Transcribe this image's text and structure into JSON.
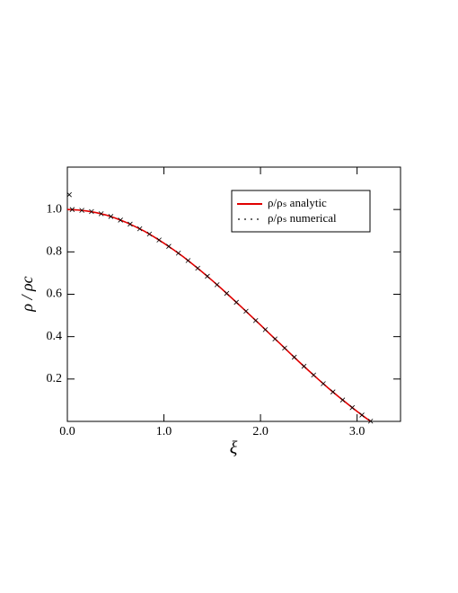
{
  "chart_data": {
    "type": "line",
    "xlabel": "ξ",
    "ylabel": "ρ / ρc",
    "xlim": [
      0,
      3.45
    ],
    "ylim": [
      0,
      1.2
    ],
    "xticks": [
      {
        "value": 0,
        "label": "0.0"
      },
      {
        "value": 1,
        "label": "1.0"
      },
      {
        "value": 2,
        "label": "2.0"
      },
      {
        "value": 3,
        "label": "3.0"
      }
    ],
    "yticks": [
      0.2,
      0.4,
      0.6,
      0.8,
      {
        "value": 1,
        "label": "1.0"
      }
    ],
    "legend": "upper right",
    "series": [
      {
        "name": "ρ/ρₛ analytic",
        "color": "#e00000",
        "style": "line",
        "x": [
          0,
          0.1,
          0.2,
          0.3,
          0.4,
          0.5,
          0.6,
          0.7,
          0.8,
          0.9,
          1.0,
          1.1,
          1.2,
          1.3,
          1.4,
          1.5,
          1.6,
          1.7,
          1.8,
          1.9,
          2.0,
          2.1,
          2.2,
          2.3,
          2.4,
          2.5,
          2.6,
          2.7,
          2.8,
          2.9,
          3.0,
          3.1,
          3.14
        ],
        "values": [
          1,
          0.998,
          0.993,
          0.985,
          0.974,
          0.959,
          0.941,
          0.92,
          0.897,
          0.87,
          0.841,
          0.81,
          0.777,
          0.741,
          0.704,
          0.665,
          0.625,
          0.583,
          0.541,
          0.498,
          0.455,
          0.411,
          0.368,
          0.324,
          0.281,
          0.239,
          0.198,
          0.158,
          0.12,
          0.083,
          0.047,
          0.013,
          0.001
        ]
      },
      {
        "name": "ρ/ρₛ numerical",
        "color": "#000000",
        "style": "markers",
        "x": [
          0.02,
          0.05,
          0.15,
          0.25,
          0.35,
          0.45,
          0.55,
          0.65,
          0.75,
          0.85,
          0.95,
          1.05,
          1.15,
          1.25,
          1.35,
          1.45,
          1.55,
          1.65,
          1.75,
          1.85,
          1.95,
          2.05,
          2.15,
          2.25,
          2.35,
          2.45,
          2.55,
          2.65,
          2.75,
          2.85,
          2.95,
          3.05,
          3.14
        ],
        "values": [
          1.07,
          1.0,
          0.996,
          0.99,
          0.98,
          0.967,
          0.95,
          0.931,
          0.909,
          0.884,
          0.856,
          0.826,
          0.794,
          0.759,
          0.723,
          0.685,
          0.645,
          0.604,
          0.562,
          0.52,
          0.476,
          0.433,
          0.389,
          0.346,
          0.303,
          0.26,
          0.219,
          0.178,
          0.139,
          0.101,
          0.065,
          0.03,
          0.001
        ]
      }
    ]
  }
}
